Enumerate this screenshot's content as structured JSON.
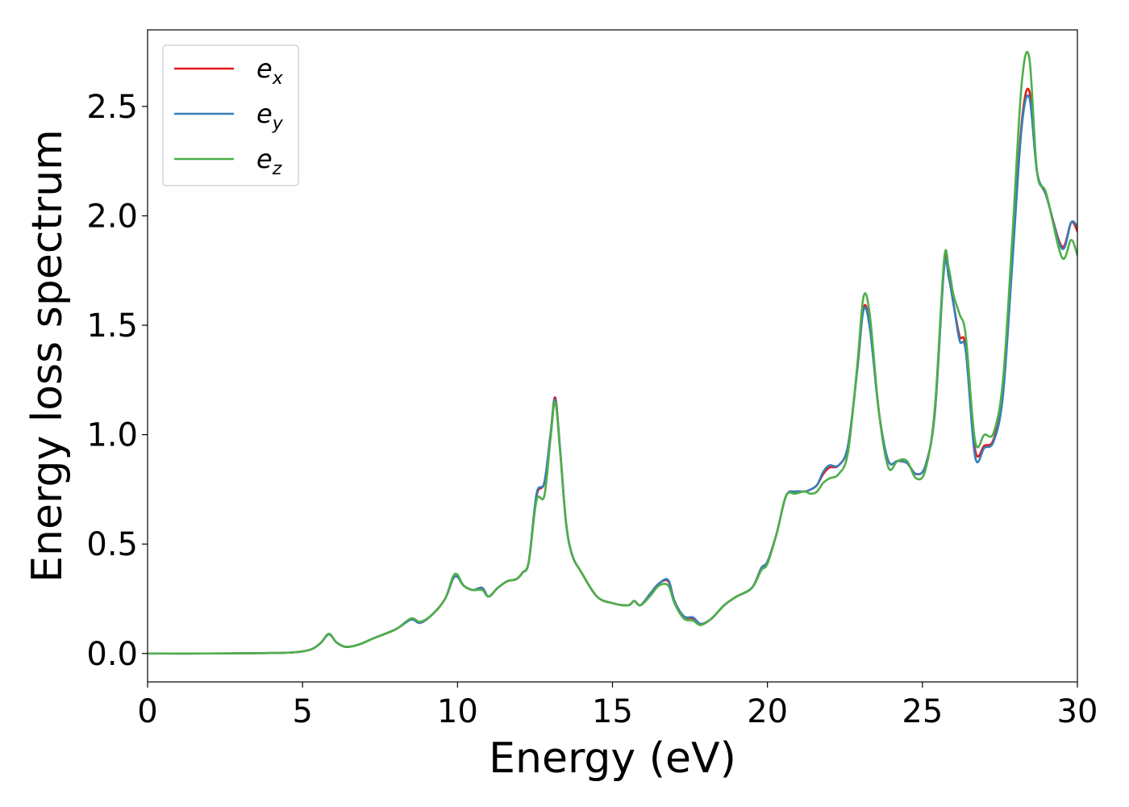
{
  "chart_data": {
    "type": "line",
    "xlabel": "Energy (eV)",
    "ylabel": "Energy loss spectrum",
    "xlim": [
      0,
      30
    ],
    "ylim": [
      -0.13,
      2.85
    ],
    "xticks": [
      0,
      5,
      10,
      15,
      20,
      25,
      30
    ],
    "xtick_labels": [
      "0",
      "5",
      "10",
      "15",
      "20",
      "25",
      "30"
    ],
    "yticks": [
      0.0,
      0.5,
      1.0,
      1.5,
      2.0,
      2.5
    ],
    "ytick_labels": [
      "0.0",
      "0.5",
      "1.0",
      "1.5",
      "2.0",
      "2.5"
    ],
    "grid": false,
    "legend_position": "top-left",
    "series": [
      {
        "name": "e_x",
        "label_base": "e",
        "label_sub": "x",
        "color": "#e41a1c",
        "x": [
          0,
          2,
          4,
          4.8,
          5.3,
          5.6,
          5.85,
          6.1,
          6.4,
          6.8,
          7.3,
          8.0,
          8.5,
          8.8,
          9.2,
          9.6,
          9.85,
          10.0,
          10.2,
          10.5,
          10.8,
          11.0,
          11.3,
          11.6,
          11.9,
          12.1,
          12.3,
          12.55,
          12.8,
          13.0,
          13.15,
          13.3,
          13.5,
          13.7,
          14.0,
          14.5,
          15.0,
          15.5,
          15.7,
          15.9,
          16.2,
          16.5,
          16.8,
          17.0,
          17.3,
          17.6,
          17.85,
          18.2,
          18.6,
          19.0,
          19.5,
          19.8,
          20.0,
          20.3,
          20.6,
          20.9,
          21.2,
          21.4,
          21.6,
          21.8,
          22.0,
          22.3,
          22.6,
          22.9,
          23.1,
          23.3,
          23.6,
          23.9,
          24.2,
          24.5,
          24.8,
          25.1,
          25.4,
          25.7,
          25.85,
          26.0,
          26.2,
          26.4,
          26.7,
          27.0,
          27.3,
          27.6,
          27.9,
          28.2,
          28.45,
          28.7,
          29.0,
          29.5,
          29.8,
          30.0
        ],
        "y": [
          0.0,
          0.0,
          0.002,
          0.006,
          0.02,
          0.05,
          0.088,
          0.05,
          0.03,
          0.04,
          0.07,
          0.11,
          0.155,
          0.14,
          0.18,
          0.25,
          0.34,
          0.35,
          0.31,
          0.29,
          0.3,
          0.26,
          0.3,
          0.33,
          0.34,
          0.37,
          0.42,
          0.72,
          0.78,
          1.0,
          1.17,
          0.95,
          0.6,
          0.45,
          0.37,
          0.26,
          0.23,
          0.22,
          0.24,
          0.22,
          0.27,
          0.32,
          0.33,
          0.24,
          0.17,
          0.16,
          0.135,
          0.16,
          0.22,
          0.26,
          0.3,
          0.39,
          0.42,
          0.55,
          0.72,
          0.74,
          0.74,
          0.75,
          0.77,
          0.82,
          0.85,
          0.86,
          0.95,
          1.3,
          1.58,
          1.5,
          1.1,
          0.88,
          0.88,
          0.87,
          0.82,
          0.86,
          1.1,
          1.78,
          1.72,
          1.6,
          1.45,
          1.4,
          0.93,
          0.95,
          0.98,
          1.2,
          1.8,
          2.42,
          2.57,
          2.2,
          2.09,
          1.86,
          1.97,
          1.93
        ]
      },
      {
        "name": "e_y",
        "label_base": "e",
        "label_sub": "y",
        "color": "#377eb8",
        "x": [
          0,
          2,
          4,
          4.8,
          5.3,
          5.6,
          5.85,
          6.1,
          6.4,
          6.8,
          7.3,
          8.0,
          8.5,
          8.8,
          9.2,
          9.6,
          9.85,
          10.0,
          10.2,
          10.5,
          10.8,
          11.0,
          11.3,
          11.6,
          11.9,
          12.1,
          12.3,
          12.55,
          12.8,
          13.0,
          13.15,
          13.3,
          13.5,
          13.7,
          14.0,
          14.5,
          15.0,
          15.5,
          15.7,
          15.9,
          16.2,
          16.5,
          16.8,
          17.0,
          17.3,
          17.6,
          17.85,
          18.2,
          18.6,
          19.0,
          19.5,
          19.8,
          20.0,
          20.3,
          20.6,
          20.9,
          21.2,
          21.4,
          21.6,
          21.8,
          22.0,
          22.3,
          22.6,
          22.9,
          23.1,
          23.3,
          23.6,
          23.9,
          24.2,
          24.5,
          24.8,
          25.1,
          25.4,
          25.7,
          25.85,
          26.0,
          26.2,
          26.4,
          26.7,
          27.0,
          27.3,
          27.6,
          27.9,
          28.2,
          28.45,
          28.7,
          29.0,
          29.5,
          29.8,
          30.0
        ],
        "y": [
          0.0,
          0.0,
          0.002,
          0.006,
          0.02,
          0.05,
          0.088,
          0.05,
          0.03,
          0.04,
          0.07,
          0.11,
          0.155,
          0.14,
          0.18,
          0.25,
          0.34,
          0.35,
          0.31,
          0.29,
          0.3,
          0.26,
          0.3,
          0.33,
          0.34,
          0.37,
          0.42,
          0.73,
          0.78,
          1.0,
          1.16,
          0.95,
          0.6,
          0.45,
          0.37,
          0.26,
          0.23,
          0.22,
          0.24,
          0.22,
          0.27,
          0.32,
          0.335,
          0.24,
          0.17,
          0.165,
          0.135,
          0.16,
          0.22,
          0.26,
          0.3,
          0.39,
          0.42,
          0.55,
          0.72,
          0.74,
          0.74,
          0.75,
          0.77,
          0.83,
          0.86,
          0.86,
          0.95,
          1.3,
          1.57,
          1.49,
          1.1,
          0.88,
          0.88,
          0.87,
          0.82,
          0.86,
          1.1,
          1.76,
          1.72,
          1.6,
          1.43,
          1.38,
          0.9,
          0.94,
          0.97,
          1.18,
          1.78,
          2.4,
          2.54,
          2.2,
          2.09,
          1.85,
          1.97,
          1.95
        ]
      },
      {
        "name": "e_z",
        "label_base": "e",
        "label_sub": "z",
        "color": "#4daf4a",
        "x": [
          0,
          2,
          4,
          4.8,
          5.3,
          5.6,
          5.85,
          6.1,
          6.4,
          6.8,
          7.3,
          8.0,
          8.5,
          8.8,
          9.2,
          9.6,
          9.85,
          10.0,
          10.2,
          10.5,
          10.8,
          11.0,
          11.3,
          11.6,
          11.9,
          12.1,
          12.3,
          12.55,
          12.8,
          13.0,
          13.15,
          13.3,
          13.5,
          13.7,
          14.0,
          14.5,
          15.0,
          15.5,
          15.7,
          15.9,
          16.2,
          16.5,
          16.8,
          17.0,
          17.3,
          17.6,
          17.85,
          18.2,
          18.6,
          19.0,
          19.5,
          19.8,
          20.0,
          20.3,
          20.6,
          20.9,
          21.2,
          21.4,
          21.6,
          21.8,
          22.0,
          22.3,
          22.6,
          22.9,
          23.1,
          23.3,
          23.6,
          23.9,
          24.2,
          24.5,
          24.8,
          25.1,
          25.4,
          25.7,
          25.85,
          26.0,
          26.2,
          26.4,
          26.7,
          27.0,
          27.3,
          27.6,
          27.9,
          28.2,
          28.45,
          28.7,
          29.0,
          29.5,
          29.8,
          30.0
        ],
        "y": [
          0.0,
          0.0,
          0.002,
          0.006,
          0.02,
          0.05,
          0.09,
          0.05,
          0.03,
          0.04,
          0.07,
          0.11,
          0.16,
          0.145,
          0.18,
          0.25,
          0.35,
          0.36,
          0.31,
          0.29,
          0.29,
          0.26,
          0.3,
          0.33,
          0.34,
          0.37,
          0.42,
          0.7,
          0.72,
          0.98,
          1.15,
          0.94,
          0.6,
          0.45,
          0.37,
          0.26,
          0.23,
          0.22,
          0.24,
          0.22,
          0.26,
          0.31,
          0.31,
          0.23,
          0.16,
          0.15,
          0.13,
          0.16,
          0.22,
          0.26,
          0.3,
          0.38,
          0.41,
          0.55,
          0.72,
          0.73,
          0.74,
          0.73,
          0.74,
          0.78,
          0.8,
          0.82,
          0.92,
          1.32,
          1.63,
          1.55,
          1.1,
          0.85,
          0.88,
          0.88,
          0.8,
          0.84,
          1.12,
          1.8,
          1.76,
          1.64,
          1.55,
          1.45,
          0.97,
          1.0,
          1.01,
          1.25,
          1.9,
          2.6,
          2.72,
          2.2,
          2.1,
          1.81,
          1.89,
          1.82
        ]
      }
    ]
  }
}
